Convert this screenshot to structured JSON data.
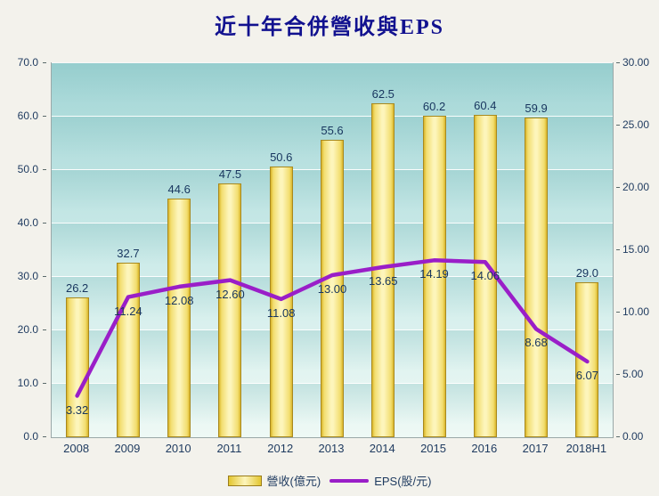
{
  "title": "近十年合併營收與EPS",
  "chart_data": {
    "type": "bar",
    "combo": "bar+line",
    "title": "近十年合併營收與EPS",
    "categories": [
      "2008",
      "2009",
      "2010",
      "2011",
      "2012",
      "2013",
      "2014",
      "2015",
      "2016",
      "2017",
      "2018H1"
    ],
    "series": [
      {
        "name": "營收(億元)",
        "type": "bar",
        "axis": "left",
        "values": [
          26.2,
          32.7,
          44.6,
          47.5,
          50.6,
          55.6,
          62.5,
          60.2,
          60.4,
          59.9,
          29.0
        ],
        "labels": [
          "26.2",
          "32.7",
          "44.6",
          "47.5",
          "50.6",
          "55.6",
          "62.5",
          "60.2",
          "60.4",
          "59.9",
          "29.0"
        ],
        "color": "#f2dd6e"
      },
      {
        "name": "EPS(股/元)",
        "type": "line",
        "axis": "right",
        "values": [
          3.32,
          11.24,
          12.08,
          12.6,
          11.08,
          13.0,
          13.65,
          14.19,
          14.06,
          8.68,
          6.07
        ],
        "labels": [
          "3.32",
          "11.24",
          "12.08",
          "12.60",
          "11.08",
          "13.00",
          "13.65",
          "14.19",
          "14.06",
          "8.68",
          "6.07"
        ],
        "color": "#9a1ec8"
      }
    ],
    "left_axis": {
      "min": 0,
      "max": 70,
      "step": 10,
      "tick_labels": [
        "0.0",
        "10.0",
        "20.0",
        "30.0",
        "40.0",
        "50.0",
        "60.0",
        "70.0"
      ]
    },
    "right_axis": {
      "min": 0,
      "max": 30,
      "step": 5,
      "tick_labels": [
        "0.00",
        "5.00",
        "10.00",
        "15.00",
        "20.00",
        "25.00",
        "30.00"
      ]
    },
    "grid": true,
    "legend_position": "bottom",
    "colors": {
      "title_text": "#11118f",
      "axis_text": "#1e3a5f",
      "bar_edge": "#d9b52a",
      "bar_center": "#fdf5bb",
      "line": "#9a1ec8",
      "plot_top": "#a3d6d6",
      "plot_bottom": "#eef9f5"
    }
  }
}
